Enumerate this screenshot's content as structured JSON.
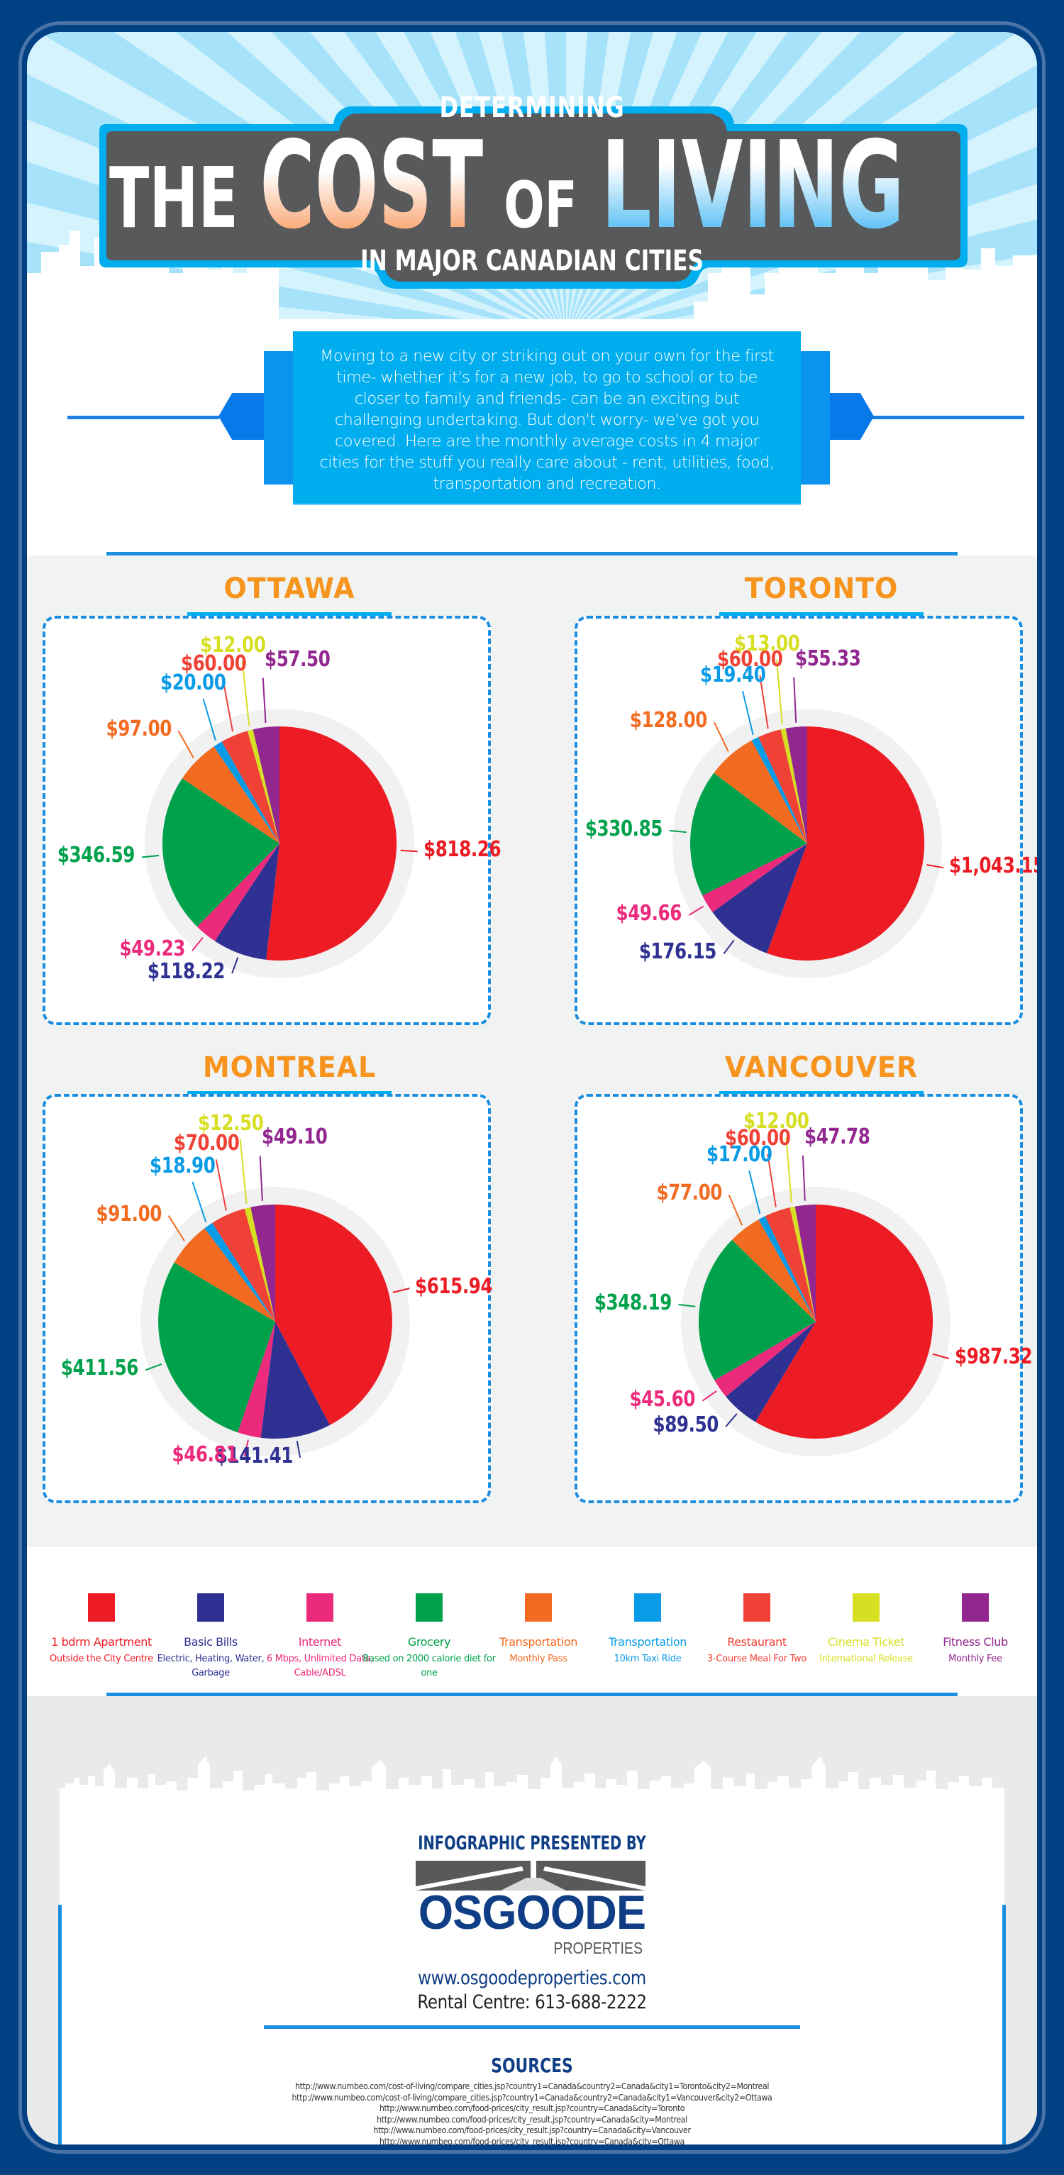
{
  "header": {
    "title_top": "DETERMINING",
    "title_the": "THE",
    "title_cost": "COST",
    "title_of": "OF",
    "title_living": "LIVING",
    "title_bottom": "IN MAJOR CANADIAN CITIES"
  },
  "intro": {
    "text": "Moving to a new city or striking out on your own for the first time- whether it's for a new job, to go to school or to be closer to family and friends- can be an exciting but challenging undertaking. But don't worry- we've got you covered. Here are the monthly average costs in 4 major cities for the stuff you really care about - rent, utilities, food, transportation and recreation."
  },
  "colors": {
    "apartment": "#ed1c24",
    "bills": "#2e3192",
    "internet": "#ec2a7b",
    "grocery": "#00a14b",
    "transport_pass": "#f26b21",
    "taxi": "#0a9be6",
    "restaurant": "#ef4136",
    "cinema": "#d7df23",
    "fitness": "#92278f",
    "city_title": "#f7941e",
    "accent_blue": "#00aeef",
    "frame_navy": "#024084"
  },
  "chart_data": [
    {
      "type": "pie",
      "title": "OTTAWA",
      "categories": [
        "1 bdrm Apartment",
        "Basic Bills",
        "Internet",
        "Grocery",
        "Transportation (Monthly Pass)",
        "Transportation (10km Taxi Ride)",
        "Restaurant",
        "Cinema Ticket",
        "Fitness Club"
      ],
      "values": [
        818.26,
        118.22,
        49.23,
        346.59,
        97.0,
        20.0,
        60.0,
        12.0,
        57.5
      ],
      "labels": [
        "$818.26",
        "$118.22",
        "$49.23",
        "$346.59",
        "$97.00",
        "$20.00",
        "$60.00",
        "$12.00",
        "$57.50"
      ]
    },
    {
      "type": "pie",
      "title": "TORONTO",
      "categories": [
        "1 bdrm Apartment",
        "Basic Bills",
        "Internet",
        "Grocery",
        "Transportation (Monthly Pass)",
        "Transportation (10km Taxi Ride)",
        "Restaurant",
        "Cinema Ticket",
        "Fitness Club"
      ],
      "values": [
        1043.15,
        176.15,
        49.66,
        330.85,
        128.0,
        19.4,
        60.0,
        13.0,
        55.33
      ],
      "labels": [
        "$1,043.15",
        "$176.15",
        "$49.66",
        "$330.85",
        "$128.00",
        "$19.40",
        "$60.00",
        "$13.00",
        "$55.33"
      ]
    },
    {
      "type": "pie",
      "title": "MONTREAL",
      "categories": [
        "1 bdrm Apartment",
        "Basic Bills",
        "Internet",
        "Grocery",
        "Transportation (Monthly Pass)",
        "Transportation (10km Taxi Ride)",
        "Restaurant",
        "Cinema Ticket",
        "Fitness Club"
      ],
      "values": [
        615.94,
        141.41,
        46.81,
        411.56,
        91.0,
        18.9,
        70.0,
        12.5,
        49.1
      ],
      "labels": [
        "$615.94",
        "$141.41",
        "$46.81",
        "$411.56",
        "$91.00",
        "$18.90",
        "$70.00",
        "$12.50",
        "$49.10"
      ]
    },
    {
      "type": "pie",
      "title": "VANCOUVER",
      "categories": [
        "1 bdrm Apartment",
        "Basic Bills",
        "Internet",
        "Grocery",
        "Transportation (Monthly Pass)",
        "Transportation (10km Taxi Ride)",
        "Restaurant",
        "Cinema Ticket",
        "Fitness Club"
      ],
      "values": [
        987.32,
        89.5,
        45.6,
        348.19,
        77.0,
        17.0,
        60.0,
        12.0,
        47.78
      ],
      "labels": [
        "$987.32",
        "$89.50",
        "$45.60",
        "$348.19",
        "$77.00",
        "$17.00",
        "$60.00",
        "$12.00",
        "$47.78"
      ]
    }
  ],
  "cities": {
    "ottawa": {
      "name": "OTTAWA"
    },
    "toronto": {
      "name": "TORONTO"
    },
    "montreal": {
      "name": "MONTREAL"
    },
    "vancouver": {
      "name": "VANCOUVER"
    }
  },
  "legend": {
    "items": [
      {
        "title": "1 bdrm Apartment",
        "desc": "Outside the City Centre",
        "color": "#ed1c24"
      },
      {
        "title": "Basic Bills",
        "desc": "Electric, Heating, Water, Garbage",
        "color": "#2e3192"
      },
      {
        "title": "Internet",
        "desc": "6 Mbps, Unlimited Data, Cable/ADSL",
        "color": "#ec2a7b"
      },
      {
        "title": "Grocery",
        "desc": "Based on 2000 calorie diet for one",
        "color": "#00a14b"
      },
      {
        "title": "Transportation",
        "desc": "Monthly Pass",
        "color": "#f26b21"
      },
      {
        "title": "Transportation",
        "desc": "10km Taxi Ride",
        "color": "#0a9be6"
      },
      {
        "title": "Restaurant",
        "desc": "3-Course Meal For Two",
        "color": "#ef4136"
      },
      {
        "title": "Cinema Ticket",
        "desc": "International Release",
        "color": "#d7df23"
      },
      {
        "title": "Fitness Club",
        "desc": "Monthly Fee",
        "color": "#92278f"
      }
    ]
  },
  "footer": {
    "presented_by": "INFOGRAPHIC PRESENTED BY",
    "company_name": "OSGOODE",
    "company_sub": "PROPERTIES",
    "website": "www.osgoodeproperties.com",
    "phone": "Rental Centre: 613-688-2222",
    "sources_title": "SOURCES",
    "sources": [
      "http://www.numbeo.com/cost-of-living/compare_cities.jsp?country1=Canada&country2=Canada&city1=Toronto&city2=Montreal",
      "http://www.numbeo.com/cost-of-living/compare_cities.jsp?country1=Canada&country2=Canada&city1=Vancouver&city2=Ottawa",
      "http://www.numbeo.com/food-prices/city_result.jsp?country=Canada&city=Toronto",
      "http://www.numbeo.com/food-prices/city_result.jsp?country=Canada&city=Montreal",
      "http://www.numbeo.com/food-prices/city_result.jsp?country=Canada&city=Vancouver",
      "http://www.numbeo.com/food-prices/city_result.jsp?country=Canada&city=Ottawa"
    ]
  }
}
